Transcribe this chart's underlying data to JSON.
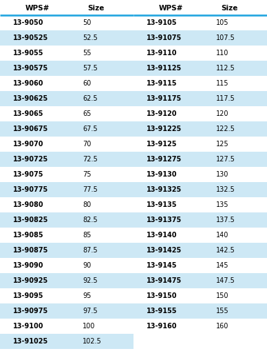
{
  "left_col": [
    [
      "13-9050",
      "50"
    ],
    [
      "13-90525",
      "52.5"
    ],
    [
      "13-9055",
      "55"
    ],
    [
      "13-90575",
      "57.5"
    ],
    [
      "13-9060",
      "60"
    ],
    [
      "13-90625",
      "62.5"
    ],
    [
      "13-9065",
      "65"
    ],
    [
      "13-90675",
      "67.5"
    ],
    [
      "13-9070",
      "70"
    ],
    [
      "13-90725",
      "72.5"
    ],
    [
      "13-9075",
      "75"
    ],
    [
      "13-90775",
      "77.5"
    ],
    [
      "13-9080",
      "80"
    ],
    [
      "13-90825",
      "82.5"
    ],
    [
      "13-9085",
      "85"
    ],
    [
      "13-90875",
      "87.5"
    ],
    [
      "13-9090",
      "90"
    ],
    [
      "13-90925",
      "92.5"
    ],
    [
      "13-9095",
      "95"
    ],
    [
      "13-90975",
      "97.5"
    ],
    [
      "13-9100",
      "100"
    ],
    [
      "13-91025",
      "102.5"
    ]
  ],
  "right_col": [
    [
      "13-9105",
      "105"
    ],
    [
      "13-91075",
      "107.5"
    ],
    [
      "13-9110",
      "110"
    ],
    [
      "13-91125",
      "112.5"
    ],
    [
      "13-9115",
      "115"
    ],
    [
      "13-91175",
      "117.5"
    ],
    [
      "13-9120",
      "120"
    ],
    [
      "13-91225",
      "122.5"
    ],
    [
      "13-9125",
      "125"
    ],
    [
      "13-91275",
      "127.5"
    ],
    [
      "13-9130",
      "130"
    ],
    [
      "13-91325",
      "132.5"
    ],
    [
      "13-9135",
      "135"
    ],
    [
      "13-91375",
      "137.5"
    ],
    [
      "13-9140",
      "140"
    ],
    [
      "13-91425",
      "142.5"
    ],
    [
      "13-9145",
      "145"
    ],
    [
      "13-91475",
      "147.5"
    ],
    [
      "13-9150",
      "150"
    ],
    [
      "13-9155",
      "155"
    ],
    [
      "13-9160",
      "160"
    ]
  ],
  "header": [
    "WPS#",
    "Size"
  ],
  "bg_color": "#ffffff",
  "stripe_color": "#cde8f5",
  "header_line_color": "#29a8e0",
  "text_color": "#000000",
  "header_fontsize": 7.5,
  "row_fontsize": 7.0
}
